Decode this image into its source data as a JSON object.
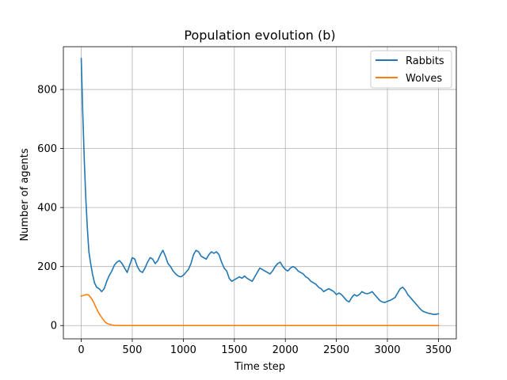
{
  "chart_data": {
    "type": "line",
    "title": "Population evolution (b)",
    "xlabel": "Time step",
    "ylabel": "Number of agents",
    "xlim": [
      -175,
      3675
    ],
    "ylim": [
      -45,
      945
    ],
    "xticks": [
      0,
      500,
      1000,
      1500,
      2000,
      2500,
      3000,
      3500
    ],
    "yticks": [
      0,
      200,
      400,
      600,
      800
    ],
    "grid": true,
    "legend_position": "top-right",
    "series": [
      {
        "name": "Rabbits",
        "color": "#1f77b4",
        "x": [
          0,
          15,
          30,
          45,
          60,
          75,
          90,
          110,
          130,
          150,
          175,
          200,
          225,
          250,
          275,
          300,
          325,
          350,
          375,
          400,
          425,
          450,
          475,
          500,
          525,
          550,
          575,
          600,
          625,
          650,
          675,
          700,
          725,
          750,
          775,
          800,
          825,
          850,
          875,
          900,
          925,
          950,
          975,
          1000,
          1025,
          1050,
          1075,
          1100,
          1125,
          1150,
          1175,
          1200,
          1225,
          1250,
          1275,
          1300,
          1325,
          1350,
          1375,
          1400,
          1425,
          1450,
          1475,
          1500,
          1525,
          1550,
          1575,
          1600,
          1625,
          1650,
          1675,
          1700,
          1725,
          1750,
          1775,
          1800,
          1825,
          1850,
          1875,
          1900,
          1925,
          1950,
          1975,
          2000,
          2025,
          2050,
          2075,
          2100,
          2125,
          2150,
          2175,
          2200,
          2225,
          2250,
          2275,
          2300,
          2325,
          2350,
          2375,
          2400,
          2425,
          2450,
          2475,
          2500,
          2525,
          2550,
          2575,
          2600,
          2625,
          2650,
          2675,
          2700,
          2725,
          2750,
          2775,
          2800,
          2825,
          2850,
          2875,
          2900,
          2925,
          2950,
          2975,
          3000,
          3025,
          3050,
          3075,
          3100,
          3125,
          3150,
          3175,
          3200,
          3225,
          3250,
          3275,
          3300,
          3325,
          3350,
          3375,
          3400,
          3425,
          3450,
          3475,
          3500
        ],
        "values": [
          905,
          720,
          560,
          430,
          330,
          250,
          215,
          175,
          145,
          130,
          125,
          115,
          125,
          150,
          170,
          185,
          205,
          215,
          220,
          210,
          195,
          180,
          205,
          230,
          225,
          200,
          185,
          180,
          195,
          215,
          230,
          225,
          210,
          220,
          240,
          255,
          235,
          210,
          200,
          185,
          175,
          168,
          165,
          170,
          180,
          190,
          210,
          240,
          255,
          250,
          235,
          230,
          225,
          240,
          250,
          245,
          250,
          240,
          215,
          195,
          185,
          160,
          150,
          155,
          160,
          165,
          160,
          168,
          160,
          155,
          150,
          165,
          180,
          195,
          190,
          185,
          180,
          175,
          185,
          200,
          210,
          215,
          200,
          190,
          185,
          195,
          200,
          195,
          185,
          180,
          175,
          165,
          160,
          150,
          145,
          140,
          130,
          125,
          115,
          120,
          125,
          120,
          115,
          105,
          110,
          105,
          95,
          85,
          80,
          95,
          105,
          100,
          105,
          115,
          110,
          108,
          110,
          115,
          105,
          95,
          85,
          80,
          78,
          82,
          85,
          90,
          95,
          110,
          125,
          130,
          120,
          105,
          95,
          85,
          75,
          65,
          55,
          48,
          45,
          42,
          40,
          38,
          38,
          40
        ]
      },
      {
        "name": "Wolves",
        "color": "#ff7f0e",
        "x": [
          0,
          20,
          40,
          60,
          70,
          80,
          100,
          120,
          140,
          160,
          180,
          200,
          220,
          240,
          260,
          280,
          300,
          320,
          340,
          360,
          400,
          500,
          1000,
          1500,
          2000,
          2500,
          3000,
          3500
        ],
        "values": [
          100,
          102,
          104,
          105,
          104,
          100,
          92,
          80,
          65,
          50,
          38,
          28,
          18,
          10,
          6,
          4,
          2,
          1,
          0,
          0,
          0,
          0,
          0,
          0,
          0,
          0,
          0,
          0
        ]
      }
    ]
  }
}
